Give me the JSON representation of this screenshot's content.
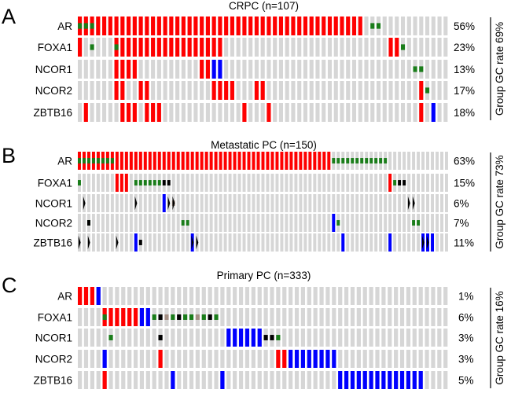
{
  "colors": {
    "wildtype": "#d6d6d6",
    "amplification": "#ff0000",
    "deletion": "#0000ff",
    "missense": "#1a7d1a",
    "truncating": "#000000",
    "inframe": "#a48f84",
    "structural": "#000000",
    "bracket": "#000000"
  },
  "chart_data": [
    {
      "panel": "A",
      "type": "oncoprint",
      "title": "CRPC (n=107)",
      "columns": 61,
      "group_rate": "Group GC rate 69%",
      "rows": [
        {
          "gene": "AR",
          "pct": "56%",
          "amp": [
            [
              0,
              47
            ]
          ],
          "del": [],
          "mut": [
            [
              0,
              3
            ],
            [
              48,
              2
            ]
          ],
          "trunc": [],
          "inframe": [],
          "sv": []
        },
        {
          "gene": "FOXA1",
          "pct": "23%",
          "amp": [
            [
              0,
              1
            ],
            [
              6,
              18
            ],
            [
              51,
              2
            ]
          ],
          "del": [],
          "mut": [
            [
              2,
              1
            ],
            [
              6,
              1
            ],
            [
              53,
              1
            ]
          ],
          "trunc": [],
          "inframe": [],
          "sv": []
        },
        {
          "gene": "NCOR1",
          "pct": "13%",
          "amp": [
            [
              6,
              4
            ],
            [
              20,
              2
            ]
          ],
          "del": [
            [
              22,
              2
            ]
          ],
          "mut": [
            [
              55,
              2
            ]
          ],
          "trunc": [],
          "inframe": [],
          "sv": []
        },
        {
          "gene": "NCOR2",
          "pct": "17%",
          "amp": [
            [
              6,
              2
            ],
            [
              10,
              2
            ],
            [
              22,
              4
            ],
            [
              29,
              2
            ],
            [
              56,
              1
            ]
          ],
          "del": [],
          "mut": [
            [
              57,
              1
            ]
          ],
          "trunc": [],
          "inframe": [],
          "sv": []
        },
        {
          "gene": "ZBTB16",
          "pct": "18%",
          "amp": [
            [
              1,
              1
            ],
            [
              7,
              3
            ],
            [
              11,
              3
            ],
            [
              27,
              1
            ],
            [
              31,
              1
            ],
            [
              56,
              1
            ]
          ],
          "del": [
            [
              58,
              1
            ]
          ],
          "mut": [],
          "trunc": [],
          "inframe": [],
          "sv": []
        }
      ]
    },
    {
      "panel": "B",
      "type": "oncoprint",
      "title": "Metastatic PC (n=150)",
      "columns": 79,
      "group_rate": "Group GC rate 73%",
      "rows": [
        {
          "gene": "AR",
          "pct": "63%",
          "amp": [
            [
              0,
              54
            ]
          ],
          "del": [],
          "mut": [
            [
              0,
              8
            ],
            [
              54,
              12
            ]
          ],
          "trunc": [],
          "inframe": [],
          "sv": []
        },
        {
          "gene": "FOXA1",
          "pct": "15%",
          "amp": [
            [
              8,
              3
            ],
            [
              66,
              1
            ]
          ],
          "del": [],
          "mut": [
            [
              0,
              1
            ],
            [
              12,
              6
            ],
            [
              67,
              1
            ]
          ],
          "trunc": [
            [
              18,
              2
            ],
            [
              68,
              2
            ]
          ],
          "inframe": [],
          "sv": []
        },
        {
          "gene": "NCOR1",
          "pct": "6%",
          "amp": [],
          "del": [
            [
              18,
              1
            ]
          ],
          "mut": [],
          "trunc": [],
          "inframe": [
            [
              20,
              1
            ]
          ],
          "sv": [
            [
              1,
              1
            ],
            [
              12,
              1
            ],
            [
              19,
              2
            ],
            [
              70,
              2
            ]
          ]
        },
        {
          "gene": "NCOR2",
          "pct": "7%",
          "amp": [],
          "del": [
            [
              54,
              1
            ]
          ],
          "mut": [
            [
              2,
              1
            ],
            [
              22,
              2
            ],
            [
              55,
              1
            ],
            [
              71,
              2
            ]
          ],
          "trunc": [
            [
              2,
              1
            ]
          ],
          "inframe": [],
          "sv": []
        },
        {
          "gene": "ZBTB16",
          "pct": "11%",
          "amp": [],
          "del": [
            [
              12,
              1
            ],
            [
              24,
              1
            ],
            [
              56,
              1
            ],
            [
              66,
              1
            ],
            [
              73,
              3
            ]
          ],
          "mut": [],
          "trunc": [
            [
              13,
              1
            ]
          ],
          "inframe": [],
          "sv": [
            [
              0,
              1
            ],
            [
              2,
              1
            ],
            [
              8,
              1
            ],
            [
              24,
              2
            ],
            [
              73,
              2
            ]
          ]
        }
      ]
    },
    {
      "panel": "C",
      "type": "oncoprint",
      "title": "Primary PC (n=333)",
      "columns": 60,
      "group_rate": "Group GC rate 16%",
      "rows": [
        {
          "gene": "AR",
          "pct": "1%",
          "amp": [
            [
              0,
              3
            ]
          ],
          "del": [
            [
              3,
              1
            ]
          ],
          "mut": [],
          "trunc": [],
          "inframe": [],
          "sv": []
        },
        {
          "gene": "FOXA1",
          "pct": "6%",
          "amp": [
            [
              4,
              6
            ]
          ],
          "del": [
            [
              10,
              2
            ]
          ],
          "mut": [
            [
              4,
              1
            ],
            [
              12,
              1
            ],
            [
              15,
              1
            ],
            [
              17,
              2
            ],
            [
              20,
              1
            ],
            [
              22,
              1
            ]
          ],
          "trunc": [
            [
              13,
              1
            ],
            [
              16,
              1
            ],
            [
              21,
              1
            ]
          ],
          "inframe": [
            [
              14,
              1
            ],
            [
              19,
              1
            ]
          ],
          "sv": []
        },
        {
          "gene": "NCOR1",
          "pct": "3%",
          "amp": [],
          "del": [
            [
              24,
              6
            ]
          ],
          "mut": [
            [
              5,
              1
            ],
            [
              32,
              1
            ]
          ],
          "trunc": [
            [
              13,
              1
            ],
            [
              30,
              2
            ]
          ],
          "inframe": [],
          "sv": []
        },
        {
          "gene": "NCOR2",
          "pct": "3%",
          "amp": [
            [
              13,
              1
            ],
            [
              32,
              2
            ]
          ],
          "del": [
            [
              4,
              1
            ],
            [
              34,
              8
            ]
          ],
          "mut": [],
          "trunc": [],
          "inframe": [],
          "sv": []
        },
        {
          "gene": "ZBTB16",
          "pct": "5%",
          "amp": [
            [
              4,
              1
            ]
          ],
          "del": [
            [
              15,
              1
            ],
            [
              23,
              1
            ],
            [
              42,
              14
            ]
          ],
          "mut": [],
          "trunc": [],
          "inframe": [],
          "sv": []
        }
      ]
    }
  ]
}
